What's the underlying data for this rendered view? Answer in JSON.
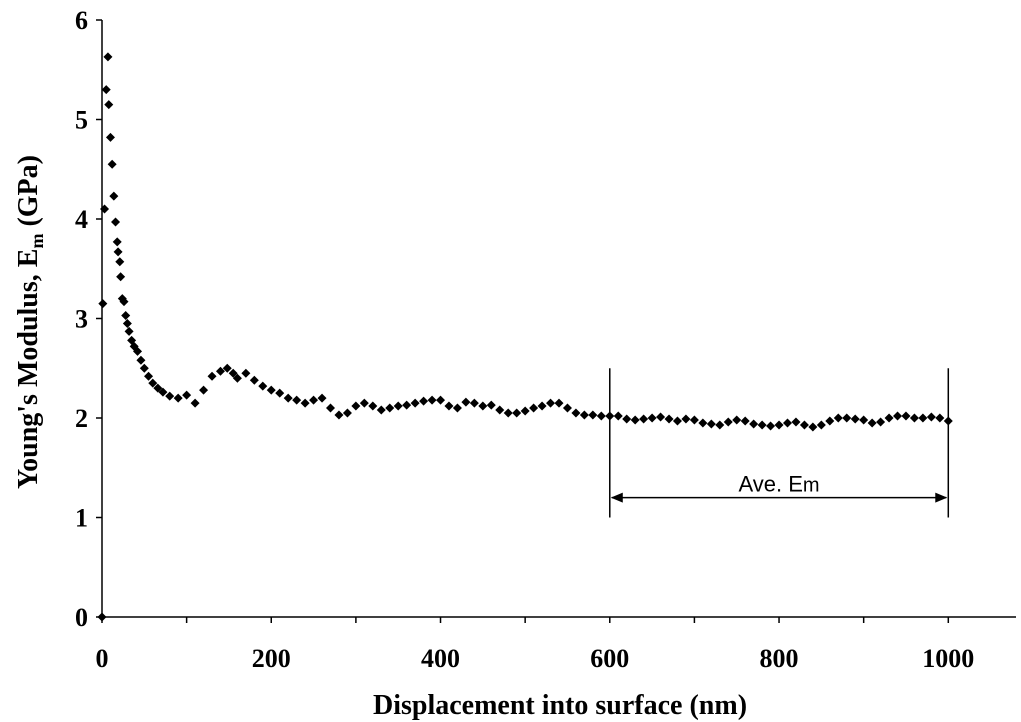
{
  "chart_data": {
    "type": "scatter",
    "title": "",
    "xlabel": "Displacement into surface (nm)",
    "ylabel_main": "Young's Modulus, E",
    "ylabel_sub": "m",
    "ylabel_unit": " (GPa)",
    "xlim": [
      0,
      1080
    ],
    "ylim": [
      0,
      6
    ],
    "x_ticks": [
      0,
      200,
      400,
      600,
      800,
      1000
    ],
    "y_ticks": [
      0,
      1,
      2,
      3,
      4,
      5,
      6
    ],
    "x_tick_labels": [
      "0",
      "200",
      "400",
      "600",
      "800",
      "1000"
    ],
    "y_tick_labels": [
      "0",
      "1",
      "2",
      "3",
      "4",
      "5",
      "6"
    ],
    "grid": false,
    "legend": false,
    "marker": "diamond",
    "series": [
      {
        "points": [
          [
            0,
            0
          ],
          [
            1,
            3.15
          ],
          [
            3,
            4.1
          ],
          [
            5,
            5.3
          ],
          [
            7,
            5.63
          ],
          [
            8,
            5.15
          ],
          [
            10,
            4.82
          ],
          [
            12,
            4.55
          ],
          [
            14,
            4.23
          ],
          [
            16,
            3.97
          ],
          [
            18,
            3.77
          ],
          [
            19,
            3.67
          ],
          [
            21,
            3.57
          ],
          [
            22,
            3.42
          ],
          [
            24,
            3.2
          ],
          [
            26,
            3.17
          ],
          [
            28,
            3.03
          ],
          [
            30,
            2.95
          ],
          [
            32,
            2.87
          ],
          [
            35,
            2.78
          ],
          [
            38,
            2.72
          ],
          [
            42,
            2.67
          ],
          [
            46,
            2.58
          ],
          [
            50,
            2.5
          ],
          [
            55,
            2.42
          ],
          [
            60,
            2.35
          ],
          [
            66,
            2.3
          ],
          [
            72,
            2.26
          ],
          [
            80,
            2.22
          ],
          [
            90,
            2.2
          ],
          [
            100,
            2.23
          ],
          [
            110,
            2.15
          ],
          [
            120,
            2.28
          ],
          [
            130,
            2.42
          ],
          [
            140,
            2.47
          ],
          [
            148,
            2.5
          ],
          [
            155,
            2.45
          ],
          [
            160,
            2.4
          ],
          [
            170,
            2.45
          ],
          [
            180,
            2.38
          ],
          [
            190,
            2.32
          ],
          [
            200,
            2.28
          ],
          [
            210,
            2.25
          ],
          [
            220,
            2.2
          ],
          [
            230,
            2.18
          ],
          [
            240,
            2.15
          ],
          [
            250,
            2.18
          ],
          [
            260,
            2.2
          ],
          [
            270,
            2.1
          ],
          [
            280,
            2.03
          ],
          [
            290,
            2.05
          ],
          [
            300,
            2.12
          ],
          [
            310,
            2.15
          ],
          [
            320,
            2.12
          ],
          [
            330,
            2.08
          ],
          [
            340,
            2.1
          ],
          [
            350,
            2.12
          ],
          [
            360,
            2.13
          ],
          [
            370,
            2.15
          ],
          [
            380,
            2.17
          ],
          [
            390,
            2.18
          ],
          [
            400,
            2.18
          ],
          [
            410,
            2.12
          ],
          [
            420,
            2.1
          ],
          [
            430,
            2.16
          ],
          [
            440,
            2.15
          ],
          [
            450,
            2.12
          ],
          [
            460,
            2.13
          ],
          [
            470,
            2.08
          ],
          [
            480,
            2.05
          ],
          [
            490,
            2.05
          ],
          [
            500,
            2.07
          ],
          [
            510,
            2.1
          ],
          [
            520,
            2.12
          ],
          [
            530,
            2.15
          ],
          [
            540,
            2.15
          ],
          [
            550,
            2.1
          ],
          [
            560,
            2.05
          ],
          [
            570,
            2.03
          ],
          [
            580,
            2.03
          ],
          [
            590,
            2.02
          ],
          [
            600,
            2.02
          ],
          [
            610,
            2.02
          ],
          [
            620,
            1.99
          ],
          [
            630,
            1.98
          ],
          [
            640,
            1.99
          ],
          [
            650,
            2.0
          ],
          [
            660,
            2.01
          ],
          [
            670,
            1.99
          ],
          [
            680,
            1.97
          ],
          [
            690,
            1.99
          ],
          [
            700,
            1.98
          ],
          [
            710,
            1.95
          ],
          [
            720,
            1.94
          ],
          [
            730,
            1.93
          ],
          [
            740,
            1.96
          ],
          [
            750,
            1.98
          ],
          [
            760,
            1.97
          ],
          [
            770,
            1.94
          ],
          [
            780,
            1.93
          ],
          [
            790,
            1.92
          ],
          [
            800,
            1.93
          ],
          [
            810,
            1.95
          ],
          [
            820,
            1.96
          ],
          [
            830,
            1.93
          ],
          [
            840,
            1.91
          ],
          [
            850,
            1.93
          ],
          [
            860,
            1.97
          ],
          [
            870,
            2.0
          ],
          [
            880,
            2.0
          ],
          [
            890,
            1.99
          ],
          [
            900,
            1.98
          ],
          [
            910,
            1.95
          ],
          [
            920,
            1.96
          ],
          [
            930,
            2.0
          ],
          [
            940,
            2.02
          ],
          [
            950,
            2.02
          ],
          [
            960,
            2.0
          ],
          [
            970,
            2.0
          ],
          [
            980,
            2.01
          ],
          [
            990,
            2.0
          ],
          [
            1000,
            1.97
          ]
        ]
      }
    ],
    "annotation": {
      "label_main": "Ave. E",
      "label_sub": "m",
      "x_start": 600,
      "x_end": 1000,
      "bracket_y_bottom": 1.0,
      "bracket_y_top": 2.5,
      "arrow_y": 1.2
    }
  }
}
